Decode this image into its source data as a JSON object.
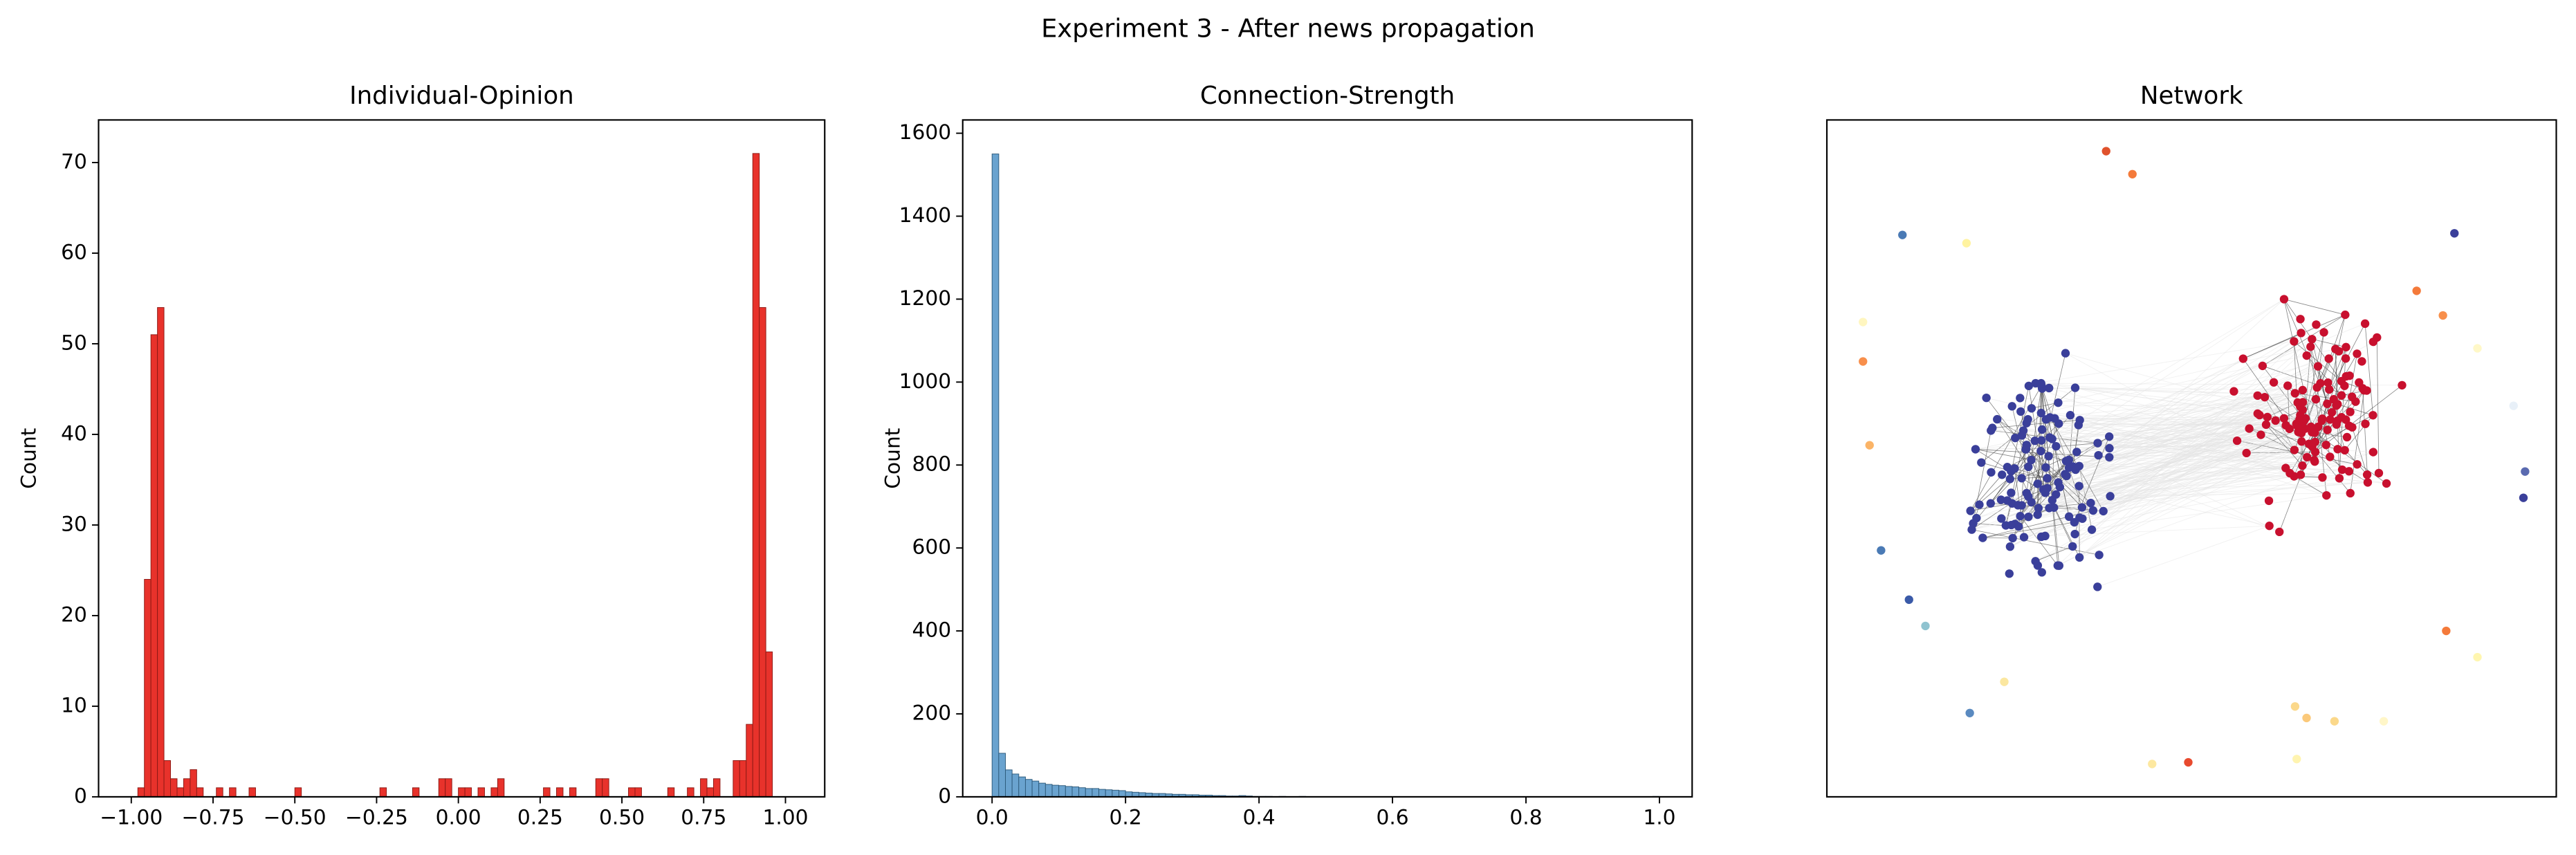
{
  "title": "Experiment 3 - After news propagation",
  "chart_data": [
    {
      "type": "histogram",
      "title": "Individual-Opinion",
      "ylabel": "Count",
      "color": "#e8322b",
      "edgecolor": "#8c1a15",
      "bins": [
        -0.98,
        -0.96,
        -0.94,
        -0.92,
        -0.9,
        -0.88,
        -0.86,
        -0.84,
        -0.82,
        -0.8,
        -0.78,
        -0.76,
        -0.74,
        -0.72,
        -0.7,
        -0.68,
        -0.66,
        -0.64,
        -0.62,
        -0.6,
        -0.58,
        -0.56,
        -0.54,
        -0.52,
        -0.5,
        -0.48,
        -0.46,
        -0.44,
        -0.42,
        -0.4,
        -0.38,
        -0.36,
        -0.34,
        -0.32,
        -0.3,
        -0.28,
        -0.26,
        -0.24,
        -0.22,
        -0.2,
        -0.18,
        -0.16,
        -0.14,
        -0.12,
        -0.1,
        -0.08,
        -0.06,
        -0.04,
        -0.02,
        0,
        0.02,
        0.04,
        0.06,
        0.08,
        0.1,
        0.12,
        0.14,
        0.16,
        0.18,
        0.2,
        0.22,
        0.24,
        0.26,
        0.28,
        0.3,
        0.32,
        0.34,
        0.36,
        0.38,
        0.4,
        0.42,
        0.44,
        0.46,
        0.48,
        0.5,
        0.52,
        0.54,
        0.56,
        0.58,
        0.6,
        0.62,
        0.64,
        0.66,
        0.68,
        0.7,
        0.72,
        0.74,
        0.76,
        0.78,
        0.8,
        0.82,
        0.84,
        0.86,
        0.88,
        0.9,
        0.92,
        0.94,
        0.96
      ],
      "counts": [
        1,
        24,
        51,
        54,
        4,
        2,
        1,
        2,
        3,
        1,
        0,
        0,
        1,
        0,
        1,
        0,
        0,
        1,
        0,
        0,
        0,
        0,
        0,
        0,
        1,
        0,
        0,
        0,
        0,
        0,
        0,
        0,
        0,
        0,
        0,
        0,
        0,
        1,
        0,
        0,
        0,
        0,
        1,
        0,
        0,
        0,
        2,
        2,
        0,
        1,
        1,
        0,
        1,
        0,
        1,
        2,
        0,
        0,
        0,
        0,
        0,
        0,
        1,
        0,
        1,
        0,
        1,
        0,
        0,
        0,
        2,
        2,
        0,
        0,
        0,
        1,
        1,
        0,
        0,
        0,
        0,
        1,
        0,
        0,
        1,
        0,
        2,
        1,
        2,
        0,
        0,
        4,
        4,
        8,
        71,
        54,
        16
      ],
      "xlim": [
        -1.1,
        1.12
      ],
      "ylim": [
        0,
        74.7
      ],
      "xticks": [
        {
          "value": -1,
          "label": "−1.00"
        },
        {
          "value": -0.75,
          "label": "−0.75"
        },
        {
          "value": -0.5,
          "label": "−0.50"
        },
        {
          "value": -0.25,
          "label": "−0.25"
        },
        {
          "value": 0,
          "label": "0.00"
        },
        {
          "value": 0.25,
          "label": "0.25"
        },
        {
          "value": 0.5,
          "label": "0.50"
        },
        {
          "value": 0.75,
          "label": "0.75"
        },
        {
          "value": 1,
          "label": "1.00"
        }
      ],
      "yticks": [
        0,
        10,
        20,
        30,
        40,
        50,
        60,
        70
      ]
    },
    {
      "type": "histogram",
      "title": "Connection-Strength",
      "ylabel": "Count",
      "color": "#6aa3cf",
      "edgecolor": "#2d5a7b",
      "bins": [
        0,
        0.01,
        0.02,
        0.03,
        0.04,
        0.05,
        0.06,
        0.07,
        0.08,
        0.09,
        0.1,
        0.11,
        0.12,
        0.13,
        0.14,
        0.15,
        0.16,
        0.17,
        0.18,
        0.19,
        0.2,
        0.21,
        0.22,
        0.23,
        0.24,
        0.25,
        0.26,
        0.27,
        0.28,
        0.29,
        0.3,
        0.31,
        0.32,
        0.33,
        0.34,
        0.35,
        0.36,
        0.37,
        0.38,
        0.39,
        0.4,
        0.41,
        0.42,
        0.43,
        0.44,
        0.45,
        0.46,
        0.47,
        0.48,
        0.49,
        0.5,
        0.51,
        0.52,
        0.53,
        0.54,
        0.55,
        0.56,
        0.57,
        0.58,
        0.59,
        0.6,
        0.61,
        0.62,
        0.63,
        0.64,
        0.65,
        0.66,
        0.67,
        0.68,
        0.69,
        0.7,
        0.71,
        0.72,
        0.73,
        0.74,
        0.75,
        0.76,
        0.77,
        0.78,
        0.79,
        0.8,
        0.81,
        0.82,
        0.83,
        0.84,
        0.85,
        0.86,
        0.87,
        0.88,
        0.89,
        0.9,
        0.91,
        0.92,
        0.93,
        0.94,
        0.95,
        0.96,
        0.97,
        0.98,
        0.99,
        1
      ],
      "counts": [
        1550,
        105,
        65,
        55,
        48,
        42,
        38,
        33,
        30,
        28,
        27,
        25,
        24,
        22,
        20,
        20,
        18,
        17,
        16,
        15,
        12,
        11,
        10,
        9,
        8,
        8,
        7,
        6,
        6,
        5,
        5,
        4,
        4,
        3,
        3,
        2,
        2,
        3,
        2,
        1,
        1,
        1,
        0,
        1,
        0,
        0,
        1,
        0,
        0,
        0,
        0,
        0,
        0,
        0,
        0,
        0,
        0,
        0,
        0,
        0,
        0,
        0,
        0,
        0,
        0,
        0,
        0,
        0,
        0,
        0,
        0,
        0,
        0,
        0,
        0,
        0,
        0,
        0,
        0,
        0,
        0,
        0,
        0,
        0,
        0,
        0,
        0,
        0,
        0,
        0,
        0,
        0,
        0,
        0,
        0,
        0,
        0,
        0,
        0,
        1
      ],
      "xlim": [
        -0.044,
        1.049
      ],
      "ylim": [
        0,
        1632
      ],
      "xticks": [
        {
          "value": 0,
          "label": "0.0"
        },
        0.2,
        0.4,
        0.6,
        0.8,
        {
          "value": 1,
          "label": "1.0"
        }
      ],
      "yticks": [
        0,
        200,
        400,
        600,
        800,
        1000,
        1200,
        1400,
        1600
      ]
    },
    {
      "type": "network",
      "title": "Network"
    }
  ]
}
